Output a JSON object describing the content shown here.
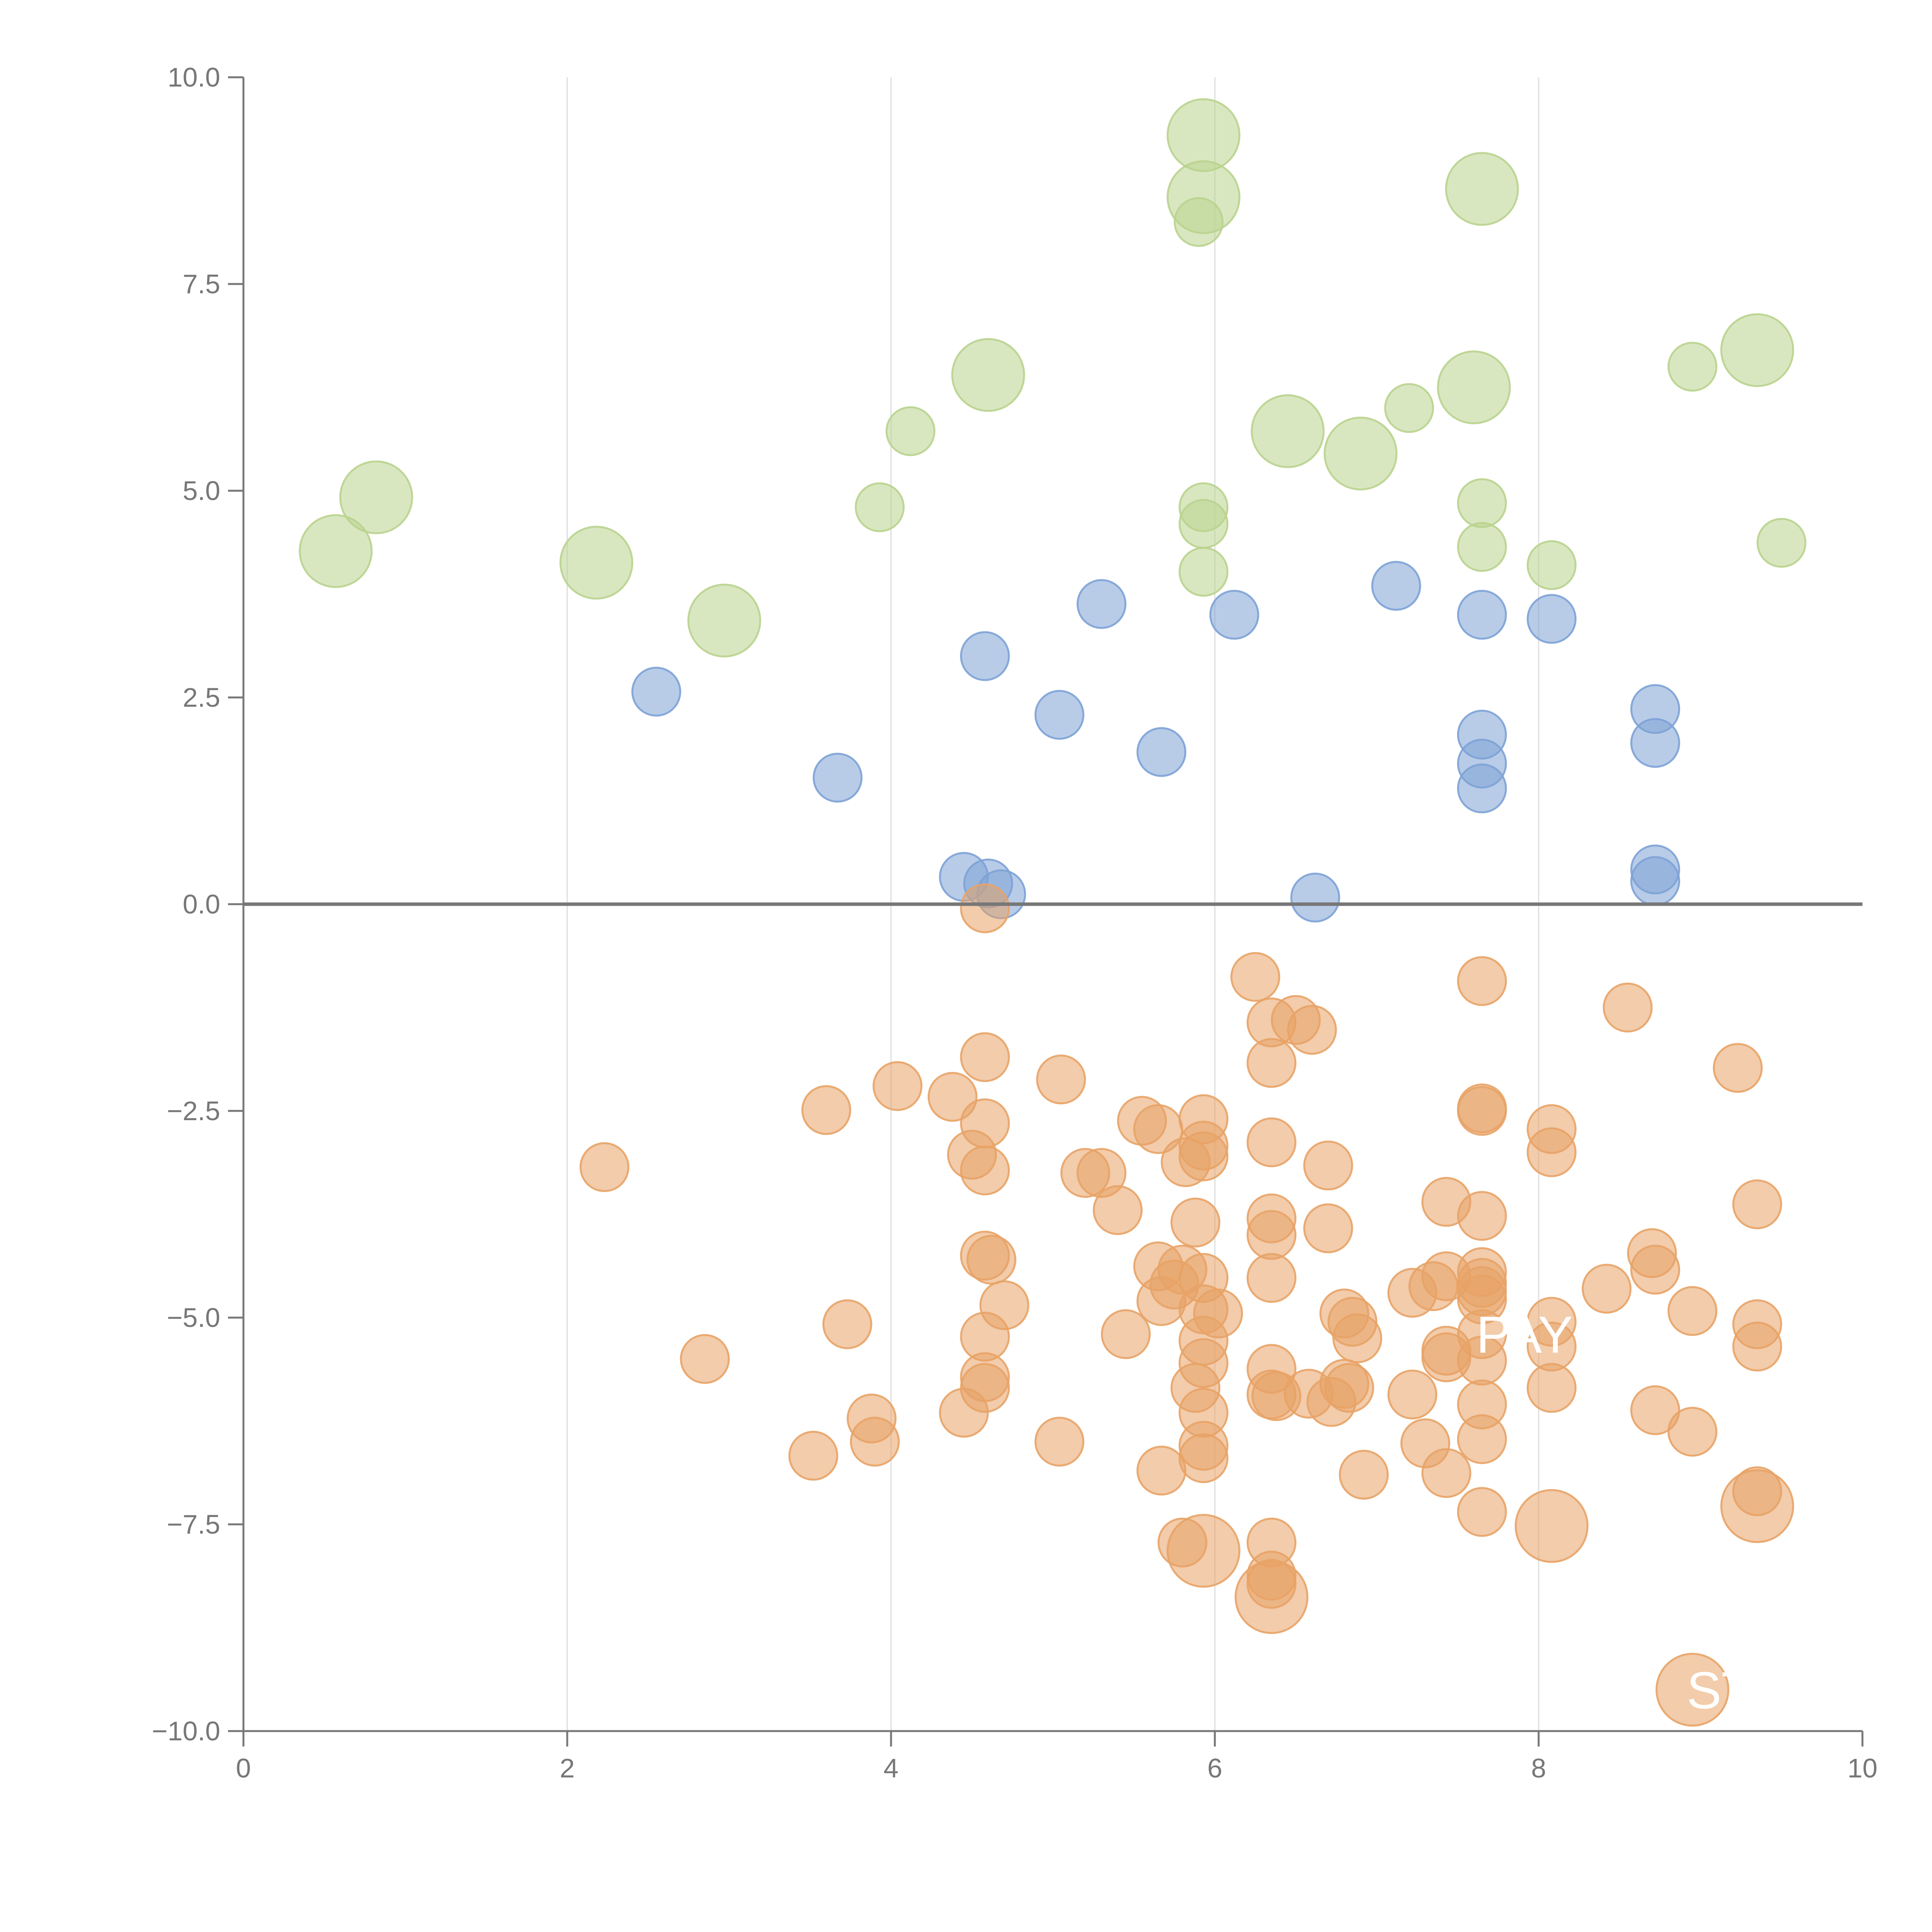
{
  "colors": {
    "orange": "#E8A366",
    "blue": "#7DA2D6",
    "green": "#B9D38E",
    "axis": "#777777",
    "grid": "#DDDDDD",
    "zero_line": "#777777"
  },
  "chart_data": {
    "type": "scatter",
    "title": "",
    "xlabel": "",
    "ylabel": "",
    "xlim": [
      0,
      10
    ],
    "ylim": [
      -10,
      10
    ],
    "x_ticks": [
      0,
      2,
      4,
      6,
      8,
      10
    ],
    "x_tick_labels": [
      "0",
      "2",
      "4",
      "6",
      "8",
      "10"
    ],
    "y_ticks": [
      10,
      7.5,
      5,
      2.5,
      0,
      -2.5,
      -5,
      -7.5,
      -10
    ],
    "y_tick_labels": [
      "10.0",
      "7.5",
      "5.0",
      "2.5",
      "0.0",
      "−2.5",
      "−5.0",
      "−7.5",
      "−10.0"
    ],
    "vertical_grid": [
      2,
      4,
      6,
      8
    ],
    "zero_line": true,
    "point_labels": [
      {
        "text": "PAY",
        "x": 7.65,
        "y": -5.2
      },
      {
        "text": "ST",
        "x": 8.95,
        "y": -9.5
      }
    ],
    "series": [
      {
        "name": "green",
        "color_key": "green",
        "points": [
          {
            "x": 5.93,
            "y": 9.3,
            "s": 2
          },
          {
            "x": 5.93,
            "y": 8.55,
            "s": 2
          },
          {
            "x": 5.9,
            "y": 8.25,
            "s": 0
          },
          {
            "x": 7.65,
            "y": 8.65,
            "s": 2
          },
          {
            "x": 4.6,
            "y": 6.4,
            "s": 2
          },
          {
            "x": 9.35,
            "y": 6.7,
            "s": 2
          },
          {
            "x": 8.95,
            "y": 6.5,
            "s": 0
          },
          {
            "x": 7.6,
            "y": 6.25,
            "s": 2
          },
          {
            "x": 7.2,
            "y": 6.0,
            "s": 0
          },
          {
            "x": 4.12,
            "y": 5.72,
            "s": 0
          },
          {
            "x": 6.45,
            "y": 5.72,
            "s": 2
          },
          {
            "x": 6.9,
            "y": 5.45,
            "s": 2
          },
          {
            "x": 0.82,
            "y": 4.92,
            "s": 2
          },
          {
            "x": 3.93,
            "y": 4.8,
            "s": 0
          },
          {
            "x": 5.93,
            "y": 4.8,
            "s": 0
          },
          {
            "x": 7.65,
            "y": 4.85,
            "s": 0
          },
          {
            "x": 5.93,
            "y": 4.6,
            "s": 0
          },
          {
            "x": 7.65,
            "y": 4.32,
            "s": 0
          },
          {
            "x": 0.57,
            "y": 4.27,
            "s": 2
          },
          {
            "x": 2.18,
            "y": 4.13,
            "s": 2
          },
          {
            "x": 8.08,
            "y": 4.1,
            "s": 0
          },
          {
            "x": 5.93,
            "y": 4.02,
            "s": 0
          },
          {
            "x": 9.5,
            "y": 4.37,
            "s": 0
          },
          {
            "x": 2.97,
            "y": 3.43,
            "s": 2
          }
        ]
      },
      {
        "name": "blue",
        "color_key": "blue",
        "points": [
          {
            "x": 5.3,
            "y": 3.63
          },
          {
            "x": 7.12,
            "y": 3.85
          },
          {
            "x": 6.12,
            "y": 3.5
          },
          {
            "x": 7.65,
            "y": 3.5
          },
          {
            "x": 8.08,
            "y": 3.45
          },
          {
            "x": 4.58,
            "y": 3.0
          },
          {
            "x": 2.55,
            "y": 2.57
          },
          {
            "x": 5.04,
            "y": 2.29
          },
          {
            "x": 8.72,
            "y": 2.36
          },
          {
            "x": 7.65,
            "y": 2.05
          },
          {
            "x": 8.72,
            "y": 1.95
          },
          {
            "x": 5.67,
            "y": 1.84
          },
          {
            "x": 7.65,
            "y": 1.7
          },
          {
            "x": 3.67,
            "y": 1.53
          },
          {
            "x": 7.65,
            "y": 1.4
          },
          {
            "x": 4.45,
            "y": 0.33
          },
          {
            "x": 4.6,
            "y": 0.25
          },
          {
            "x": 4.68,
            "y": 0.12
          },
          {
            "x": 6.62,
            "y": 0.08
          },
          {
            "x": 8.72,
            "y": 0.42
          },
          {
            "x": 8.72,
            "y": 0.28
          }
        ]
      },
      {
        "name": "orange",
        "color_key": "orange",
        "points": [
          {
            "x": 4.58,
            "y": -0.05,
            "s": 0
          },
          {
            "x": 6.25,
            "y": -0.88,
            "s": 0
          },
          {
            "x": 7.65,
            "y": -0.93,
            "s": 0
          },
          {
            "x": 8.55,
            "y": -1.25,
            "s": 0
          },
          {
            "x": 6.35,
            "y": -1.43,
            "s": 0
          },
          {
            "x": 6.5,
            "y": -1.4,
            "s": 0
          },
          {
            "x": 6.6,
            "y": -1.52,
            "s": 0
          },
          {
            "x": 4.58,
            "y": -1.85,
            "s": 0
          },
          {
            "x": 6.35,
            "y": -1.92,
            "s": 0
          },
          {
            "x": 9.23,
            "y": -1.98,
            "s": 0
          },
          {
            "x": 5.05,
            "y": -2.12,
            "s": 0
          },
          {
            "x": 4.04,
            "y": -2.2,
            "s": 0
          },
          {
            "x": 4.38,
            "y": -2.33,
            "s": 0
          },
          {
            "x": 3.6,
            "y": -2.49,
            "s": 0
          },
          {
            "x": 7.65,
            "y": -2.47,
            "s": 0
          },
          {
            "x": 7.65,
            "y": -2.5,
            "s": 0
          },
          {
            "x": 5.55,
            "y": -2.62,
            "s": 0
          },
          {
            "x": 5.65,
            "y": -2.72,
            "s": 0
          },
          {
            "x": 4.58,
            "y": -2.65,
            "s": 0
          },
          {
            "x": 5.93,
            "y": -2.6,
            "s": 0
          },
          {
            "x": 8.08,
            "y": -2.72,
            "s": 0
          },
          {
            "x": 6.35,
            "y": -2.88,
            "s": 0
          },
          {
            "x": 5.93,
            "y": -2.92,
            "s": 0
          },
          {
            "x": 5.93,
            "y": -3.05,
            "s": 0
          },
          {
            "x": 8.08,
            "y": -3.0,
            "s": 0
          },
          {
            "x": 4.5,
            "y": -3.03,
            "s": 0
          },
          {
            "x": 5.82,
            "y": -3.12,
            "s": 0
          },
          {
            "x": 2.23,
            "y": -3.18,
            "s": 0
          },
          {
            "x": 6.7,
            "y": -3.16,
            "s": 0
          },
          {
            "x": 4.58,
            "y": -3.22,
            "s": 0
          },
          {
            "x": 5.2,
            "y": -3.25,
            "s": 0
          },
          {
            "x": 5.3,
            "y": -3.25,
            "s": 0
          },
          {
            "x": 7.43,
            "y": -3.6,
            "s": 0
          },
          {
            "x": 9.35,
            "y": -3.63,
            "s": 0
          },
          {
            "x": 5.4,
            "y": -3.7,
            "s": 0
          },
          {
            "x": 7.65,
            "y": -3.77,
            "s": 0
          },
          {
            "x": 6.35,
            "y": -3.8,
            "s": 0
          },
          {
            "x": 5.88,
            "y": -3.85,
            "s": 0
          },
          {
            "x": 6.7,
            "y": -3.92,
            "s": 0
          },
          {
            "x": 6.35,
            "y": -4.0,
            "s": 0
          },
          {
            "x": 8.7,
            "y": -4.22,
            "s": 0
          },
          {
            "x": 4.58,
            "y": -4.25,
            "s": 0
          },
          {
            "x": 4.62,
            "y": -4.3,
            "s": 0
          },
          {
            "x": 5.65,
            "y": -4.38,
            "s": 0
          },
          {
            "x": 5.8,
            "y": -4.42,
            "s": 0
          },
          {
            "x": 8.72,
            "y": -4.42,
            "s": 0
          },
          {
            "x": 7.65,
            "y": -4.45,
            "s": 0
          },
          {
            "x": 7.43,
            "y": -4.5,
            "s": 0
          },
          {
            "x": 6.35,
            "y": -4.52,
            "s": 0
          },
          {
            "x": 5.93,
            "y": -4.52,
            "s": 0
          },
          {
            "x": 5.75,
            "y": -4.6,
            "s": 0
          },
          {
            "x": 7.65,
            "y": -4.58,
            "s": 0
          },
          {
            "x": 7.35,
            "y": -4.62,
            "s": 0
          },
          {
            "x": 8.42,
            "y": -4.65,
            "s": 0
          },
          {
            "x": 7.65,
            "y": -4.68,
            "s": 0
          },
          {
            "x": 7.22,
            "y": -4.7,
            "s": 0
          },
          {
            "x": 7.65,
            "y": -4.78,
            "s": 0
          },
          {
            "x": 5.67,
            "y": -4.8,
            "s": 0
          },
          {
            "x": 4.7,
            "y": -4.85,
            "s": 0
          },
          {
            "x": 5.93,
            "y": -4.9,
            "s": 0
          },
          {
            "x": 6.02,
            "y": -4.95,
            "s": 0
          },
          {
            "x": 6.8,
            "y": -4.95,
            "s": 0
          },
          {
            "x": 8.95,
            "y": -4.92,
            "s": 0
          },
          {
            "x": 8.08,
            "y": -5.05,
            "s": 0
          },
          {
            "x": 6.85,
            "y": -5.05,
            "s": 0
          },
          {
            "x": 3.73,
            "y": -5.08,
            "s": 0
          },
          {
            "x": 9.35,
            "y": -5.08,
            "s": 0
          },
          {
            "x": 7.65,
            "y": -5.2,
            "s": 0
          },
          {
            "x": 5.45,
            "y": -5.2,
            "s": 0
          },
          {
            "x": 4.58,
            "y": -5.23,
            "s": 0
          },
          {
            "x": 6.88,
            "y": -5.25,
            "s": 0
          },
          {
            "x": 5.93,
            "y": -5.28,
            "s": 0
          },
          {
            "x": 9.35,
            "y": -5.35,
            "s": 0
          },
          {
            "x": 8.08,
            "y": -5.35,
            "s": 0
          },
          {
            "x": 7.43,
            "y": -5.4,
            "s": 0
          },
          {
            "x": 7.43,
            "y": -5.48,
            "s": 0
          },
          {
            "x": 2.85,
            "y": -5.5,
            "s": 0
          },
          {
            "x": 7.65,
            "y": -5.52,
            "s": 0
          },
          {
            "x": 5.93,
            "y": -5.55,
            "s": 0
          },
          {
            "x": 6.35,
            "y": -5.62,
            "s": 0
          },
          {
            "x": 4.58,
            "y": -5.72,
            "s": 0
          },
          {
            "x": 6.8,
            "y": -5.8,
            "s": 0
          },
          {
            "x": 6.83,
            "y": -5.85,
            "s": 0
          },
          {
            "x": 4.58,
            "y": -5.85,
            "s": 0
          },
          {
            "x": 5.88,
            "y": -5.85,
            "s": 0
          },
          {
            "x": 8.08,
            "y": -5.85,
            "s": 0
          },
          {
            "x": 6.58,
            "y": -5.92,
            "s": 0
          },
          {
            "x": 6.35,
            "y": -5.93,
            "s": 0
          },
          {
            "x": 7.22,
            "y": -5.93,
            "s": 0
          },
          {
            "x": 6.38,
            "y": -5.95,
            "s": 0
          },
          {
            "x": 6.72,
            "y": -6.02,
            "s": 0
          },
          {
            "x": 7.65,
            "y": -6.05,
            "s": 0
          },
          {
            "x": 8.72,
            "y": -6.12,
            "s": 0
          },
          {
            "x": 4.45,
            "y": -6.15,
            "s": 0
          },
          {
            "x": 5.93,
            "y": -6.15,
            "s": 0
          },
          {
            "x": 3.88,
            "y": -6.22,
            "s": 0
          },
          {
            "x": 8.95,
            "y": -6.38,
            "s": 0
          },
          {
            "x": 3.9,
            "y": -6.5,
            "s": 0
          },
          {
            "x": 5.04,
            "y": -6.5,
            "s": 0
          },
          {
            "x": 7.65,
            "y": -6.47,
            "s": 0
          },
          {
            "x": 7.3,
            "y": -6.52,
            "s": 0
          },
          {
            "x": 5.93,
            "y": -6.55,
            "s": 0
          },
          {
            "x": 3.52,
            "y": -6.67,
            "s": 0
          },
          {
            "x": 5.93,
            "y": -6.7,
            "s": 0
          },
          {
            "x": 5.67,
            "y": -6.85,
            "s": 0
          },
          {
            "x": 7.43,
            "y": -6.88,
            "s": 0
          },
          {
            "x": 6.92,
            "y": -6.9,
            "s": 0
          },
          {
            "x": 9.35,
            "y": -7.1,
            "s": 0
          },
          {
            "x": 9.35,
            "y": -7.28,
            "s": 2
          },
          {
            "x": 7.65,
            "y": -7.35,
            "s": 0
          },
          {
            "x": 8.08,
            "y": -7.52,
            "s": 2
          },
          {
            "x": 5.8,
            "y": -7.72,
            "s": 0
          },
          {
            "x": 6.35,
            "y": -7.72,
            "s": 0
          },
          {
            "x": 5.93,
            "y": -7.82,
            "s": 2
          },
          {
            "x": 6.35,
            "y": -8.12,
            "s": 0
          },
          {
            "x": 6.35,
            "y": -8.22,
            "s": 0
          },
          {
            "x": 6.35,
            "y": -8.38,
            "s": 2
          },
          {
            "x": 8.95,
            "y": -9.5,
            "s": 2
          }
        ]
      }
    ]
  }
}
